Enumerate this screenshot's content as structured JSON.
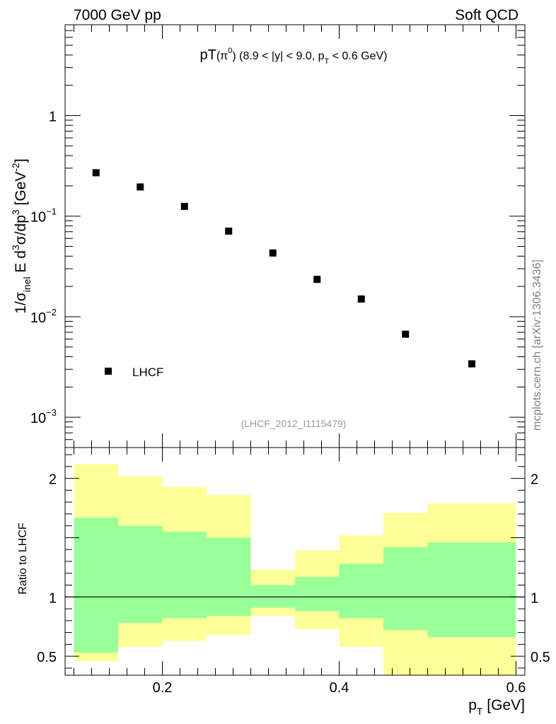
{
  "header": {
    "left": "7000 GeV pp",
    "right": "Soft QCD"
  },
  "side_label": "mcplots.cern.ch [arXiv:1306.3436]",
  "chart_data": [
    {
      "type": "scatter",
      "title_main": "pT",
      "title_particle": "(π",
      "title_particle_sup": "0",
      "title_cuts_a": ") (8.9 < |y| < 9.0, p",
      "title_cuts_sub": "T",
      "title_cuts_b": " < 0.6 GeV)",
      "ylabel_parts": [
        "1/σ",
        "inel",
        " E d",
        "3",
        "σ/dp",
        "3",
        " [GeV",
        "-2",
        "]"
      ],
      "yscale": "log",
      "ylim": [
        0.0005,
        8
      ],
      "xlim": [
        0.09,
        0.61
      ],
      "yticks": [
        {
          "value": 1,
          "label": "1",
          "exp": ""
        },
        {
          "value": 0.1,
          "label": "10",
          "exp": "−1"
        },
        {
          "value": 0.01,
          "label": "10",
          "exp": "−2"
        },
        {
          "value": 0.001,
          "label": "10",
          "exp": "−3"
        }
      ],
      "series": [
        {
          "name": "LHCF",
          "color": "#000000",
          "x": [
            0.125,
            0.175,
            0.225,
            0.275,
            0.325,
            0.375,
            0.425,
            0.475,
            0.55
          ],
          "y": [
            0.27,
            0.195,
            0.125,
            0.071,
            0.043,
            0.0235,
            0.015,
            0.0067,
            0.0034
          ]
        }
      ],
      "legend": {
        "label": "LHCF",
        "position": "bottom-left"
      },
      "analysis_id": "(LHCF_2012_I1115479)"
    },
    {
      "type": "area",
      "ylabel": "Ratio to LHCF",
      "xlabel_main": "p",
      "xlabel_sub": "T",
      "xlabel_unit": " [GeV]",
      "xlim": [
        0.09,
        0.61
      ],
      "ylim": [
        0.34,
        2.26
      ],
      "xticks": [
        {
          "value": 0.2,
          "label": "0.2"
        },
        {
          "value": 0.4,
          "label": "0.4"
        },
        {
          "value": 0.6,
          "label": "0.6"
        }
      ],
      "yticks": [
        {
          "value": 0.5,
          "label": "0.5"
        },
        {
          "value": 1,
          "label": "1"
        },
        {
          "value": 2,
          "label": "2"
        }
      ],
      "reference_line": 1,
      "bins": [
        [
          0.1,
          0.15
        ],
        [
          0.15,
          0.2
        ],
        [
          0.2,
          0.25
        ],
        [
          0.25,
          0.3
        ],
        [
          0.3,
          0.35
        ],
        [
          0.35,
          0.4
        ],
        [
          0.4,
          0.45
        ],
        [
          0.45,
          0.5
        ],
        [
          0.5,
          0.6
        ]
      ],
      "band_outer": {
        "color": "#ffff99",
        "lo": [
          0.46,
          0.58,
          0.63,
          0.68,
          0.84,
          0.73,
          0.58,
          0.34,
          0.34
        ],
        "hi": [
          2.12,
          2.02,
          1.93,
          1.86,
          1.23,
          1.39,
          1.52,
          1.71,
          1.79
        ]
      },
      "band_inner": {
        "color": "#99ff99",
        "lo": [
          0.53,
          0.78,
          0.82,
          0.84,
          0.91,
          0.88,
          0.82,
          0.72,
          0.66
        ],
        "hi": [
          1.67,
          1.6,
          1.55,
          1.5,
          1.1,
          1.17,
          1.28,
          1.42,
          1.46
        ]
      }
    }
  ]
}
